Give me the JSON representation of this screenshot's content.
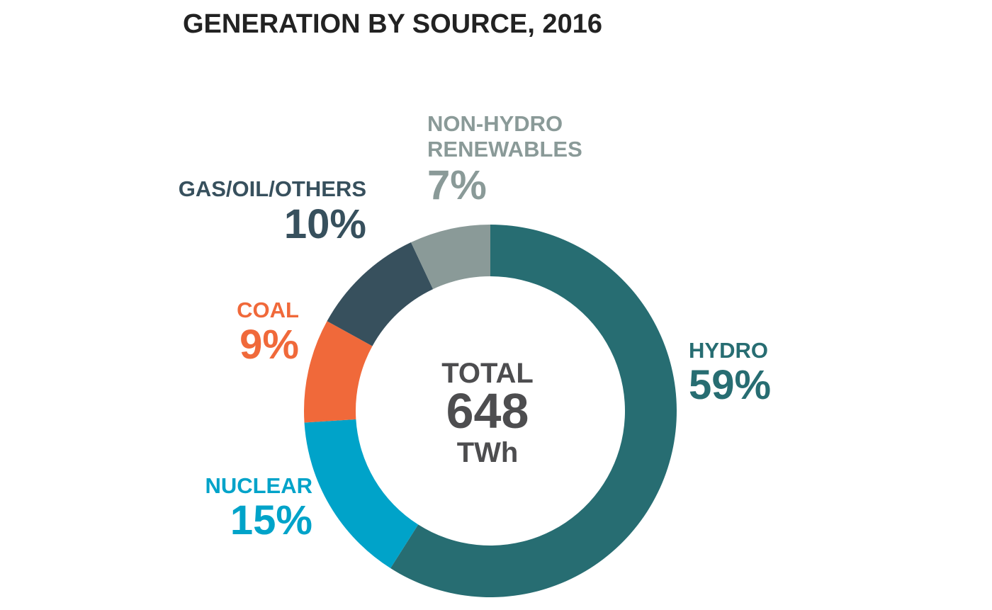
{
  "chart_data": {
    "type": "pie",
    "title": "GENERATION BY SOURCE, 2016",
    "donut": true,
    "unit": "%",
    "slices": [
      {
        "name": "HYDRO",
        "value": 59,
        "label": "59%",
        "color": "#276d72",
        "name_lines": [
          "HYDRO"
        ]
      },
      {
        "name": "NUCLEAR",
        "value": 15,
        "label": "15%",
        "color": "#00a3c9",
        "name_lines": [
          "NUCLEAR"
        ]
      },
      {
        "name": "COAL",
        "value": 9,
        "label": "9%",
        "color": "#f0693a",
        "name_lines": [
          "COAL"
        ]
      },
      {
        "name": "GAS/OIL/OTHERS",
        "value": 10,
        "label": "10%",
        "color": "#37505d",
        "name_lines": [
          "GAS/OIL/OTHERS"
        ]
      },
      {
        "name": "NON-HYDRO RENEWABLES",
        "value": 7,
        "label": "7%",
        "color": "#8a9a98",
        "name_lines": [
          "NON-HYDRO",
          "RENEWABLES"
        ]
      }
    ],
    "center": {
      "line1": "TOTAL",
      "value": "648",
      "unit": "TWh"
    }
  }
}
